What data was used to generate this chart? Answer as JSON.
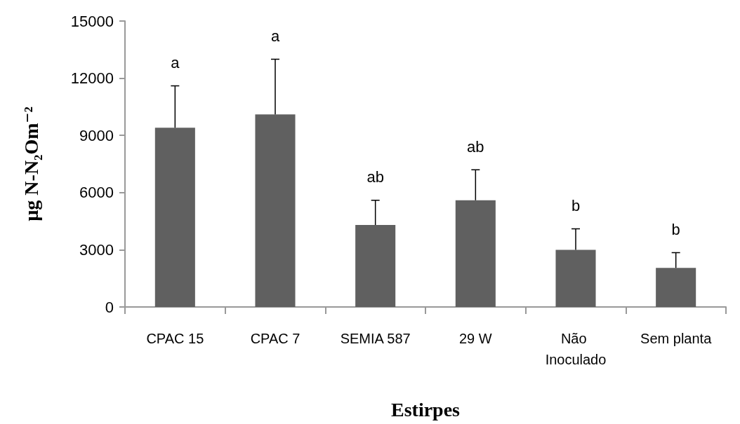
{
  "chart_data": {
    "type": "bar",
    "categories": [
      "CPAC 15",
      "CPAC 7",
      "SEMIA 587",
      "29 W",
      "Não Inoculado",
      "Sem planta"
    ],
    "values": [
      9400,
      10100,
      4300,
      5600,
      3000,
      2050
    ],
    "errors": [
      [
        9400,
        11600
      ],
      [
        10100,
        13000
      ],
      [
        4300,
        5600
      ],
      [
        5600,
        7200
      ],
      [
        3000,
        4100
      ],
      [
        2050,
        2850
      ]
    ],
    "color": "#606060",
    "xlabel": "Estirpes",
    "ylabel": "µg N-N₂Om⁻²",
    "ylim": [
      0,
      15000
    ],
    "yticks": [
      0,
      3000,
      6000,
      9000,
      12000,
      15000
    ],
    "grid": false,
    "annotations": [
      {
        "text": "a",
        "x": "CPAC 15",
        "y": 11600
      },
      {
        "text": "a",
        "x": "CPAC 7",
        "y": 13000
      },
      {
        "text": "ab",
        "x": "SEMIA 587",
        "y": 5600
      },
      {
        "text": "ab",
        "x": "29 W",
        "y": 7200
      },
      {
        "text": "b",
        "x": "Não Inoculado",
        "y": 4100
      },
      {
        "text": "b",
        "x": "Sem planta",
        "y": 2850
      }
    ]
  }
}
